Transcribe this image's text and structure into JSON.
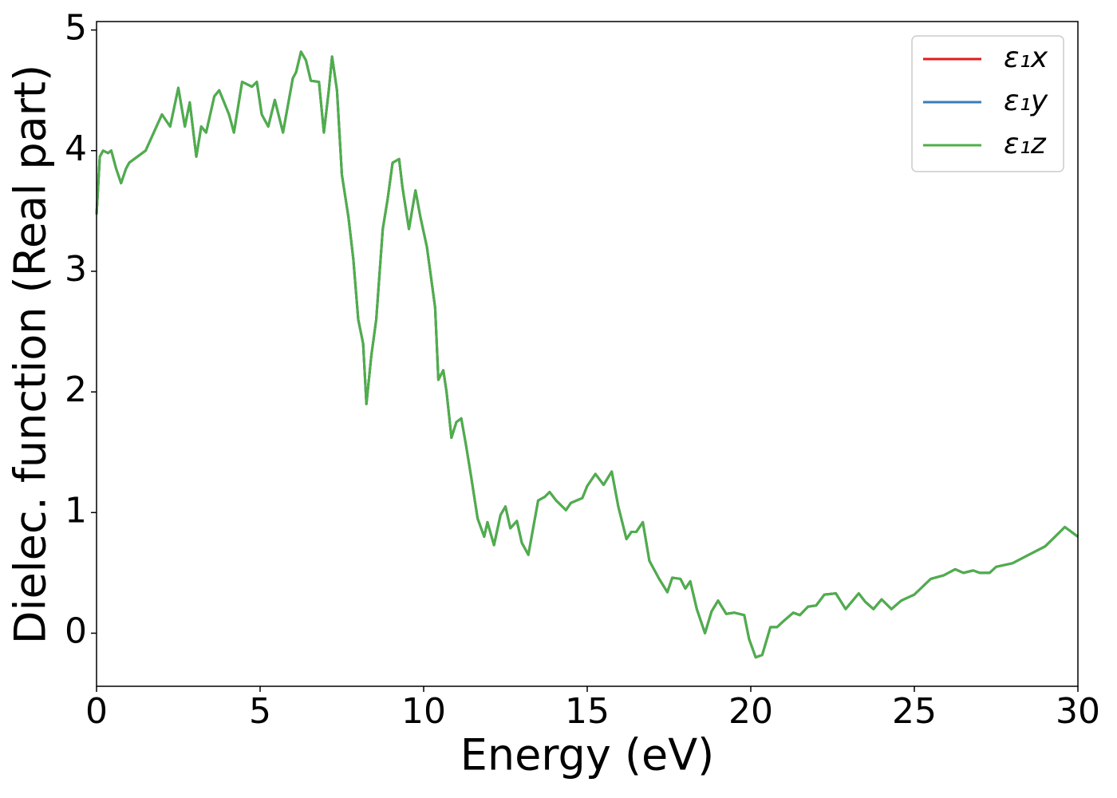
{
  "chart_data": {
    "type": "line",
    "xlabel": "Energy (eV)",
    "ylabel": "Dielec. function (Real part)",
    "xlim": [
      0,
      30
    ],
    "ylim": [
      -0.44,
      5.07
    ],
    "xticks": [
      0,
      5,
      10,
      15,
      20,
      25,
      30
    ],
    "yticks": [
      0,
      1,
      2,
      3,
      4,
      5
    ],
    "grid": false,
    "legend": "upper right",
    "x": [
      0,
      0.1,
      0.2,
      0.35,
      0.45,
      0.6,
      0.75,
      0.9,
      1.0,
      1.5,
      2.0,
      2.25,
      2.5,
      2.7,
      2.85,
      3.05,
      3.2,
      3.35,
      3.6,
      3.75,
      4.05,
      4.2,
      4.45,
      4.75,
      4.9,
      5.05,
      5.25,
      5.45,
      5.7,
      6.0,
      6.1,
      6.25,
      6.4,
      6.55,
      6.8,
      6.95,
      7.1,
      7.2,
      7.35,
      7.5,
      7.7,
      7.85,
      8.0,
      8.15,
      8.25,
      8.4,
      8.55,
      8.75,
      8.9,
      9.05,
      9.25,
      9.35,
      9.55,
      9.75,
      9.9,
      10.1,
      10.25,
      10.35,
      10.45,
      10.6,
      10.7,
      10.85,
      11.0,
      11.15,
      11.3,
      11.45,
      11.65,
      11.85,
      11.95,
      12.15,
      12.35,
      12.5,
      12.65,
      12.85,
      13.0,
      13.2,
      13.3,
      13.5,
      13.7,
      13.85,
      14.05,
      14.35,
      14.5,
      14.85,
      15.0,
      15.25,
      15.5,
      15.75,
      15.95,
      16.2,
      16.35,
      16.5,
      16.7,
      16.9,
      17.2,
      17.45,
      17.6,
      17.85,
      18.0,
      18.15,
      18.35,
      18.6,
      18.8,
      19.0,
      19.25,
      19.5,
      19.8,
      19.95,
      20.15,
      20.35,
      20.6,
      20.8,
      21.0,
      21.3,
      21.5,
      21.75,
      22.0,
      22.25,
      22.6,
      22.9,
      23.3,
      23.5,
      23.75,
      24.0,
      24.3,
      24.6,
      25.0,
      25.5,
      25.9,
      26.25,
      26.5,
      26.8,
      27.0,
      27.3,
      27.5,
      28.0,
      28.5,
      29.0,
      29.3,
      29.6,
      29.9,
      30.0
    ],
    "series": [
      {
        "name": "ε₁x",
        "color": "#e41a1c",
        "values": [
          3.47,
          3.95,
          4.0,
          3.98,
          4.0,
          3.85,
          3.73,
          3.85,
          3.9,
          4.0,
          4.3,
          4.2,
          4.52,
          4.2,
          4.4,
          3.95,
          4.2,
          4.15,
          4.45,
          4.5,
          4.3,
          4.15,
          4.57,
          4.53,
          4.57,
          4.3,
          4.2,
          4.42,
          4.15,
          4.6,
          4.65,
          4.82,
          4.75,
          4.58,
          4.57,
          4.15,
          4.5,
          4.78,
          4.5,
          3.8,
          3.45,
          3.1,
          2.6,
          2.4,
          1.9,
          2.3,
          2.6,
          3.35,
          3.6,
          3.9,
          3.93,
          3.7,
          3.35,
          3.67,
          3.45,
          3.2,
          2.9,
          2.7,
          2.1,
          2.18,
          2.0,
          1.62,
          1.75,
          1.78,
          1.55,
          1.3,
          0.95,
          0.8,
          0.92,
          0.73,
          0.98,
          1.05,
          0.87,
          0.93,
          0.75,
          0.65,
          0.8,
          1.1,
          1.13,
          1.17,
          1.1,
          1.02,
          1.08,
          1.12,
          1.22,
          1.32,
          1.23,
          1.34,
          1.05,
          0.78,
          0.84,
          0.84,
          0.92,
          0.6,
          0.45,
          0.34,
          0.46,
          0.45,
          0.37,
          0.43,
          0.2,
          0.0,
          0.18,
          0.27,
          0.16,
          0.17,
          0.15,
          -0.05,
          -0.2,
          -0.18,
          0.05,
          0.05,
          0.1,
          0.17,
          0.15,
          0.22,
          0.23,
          0.32,
          0.33,
          0.2,
          0.33,
          0.26,
          0.2,
          0.28,
          0.2,
          0.27,
          0.32,
          0.45,
          0.48,
          0.53,
          0.5,
          0.52,
          0.5,
          0.5,
          0.55,
          0.58,
          0.65,
          0.72,
          0.8,
          0.88,
          0.82,
          0.8
        ]
      },
      {
        "name": "ε₁y",
        "color": "#377eb8",
        "values": [
          3.47,
          3.95,
          4.0,
          3.98,
          4.0,
          3.85,
          3.73,
          3.85,
          3.9,
          4.0,
          4.3,
          4.2,
          4.52,
          4.2,
          4.4,
          3.95,
          4.2,
          4.15,
          4.45,
          4.5,
          4.3,
          4.15,
          4.57,
          4.53,
          4.57,
          4.3,
          4.2,
          4.42,
          4.15,
          4.6,
          4.65,
          4.82,
          4.75,
          4.58,
          4.57,
          4.15,
          4.5,
          4.78,
          4.5,
          3.8,
          3.45,
          3.1,
          2.6,
          2.4,
          1.9,
          2.3,
          2.6,
          3.35,
          3.6,
          3.9,
          3.93,
          3.7,
          3.35,
          3.67,
          3.45,
          3.2,
          2.9,
          2.7,
          2.1,
          2.18,
          2.0,
          1.62,
          1.75,
          1.78,
          1.55,
          1.3,
          0.95,
          0.8,
          0.92,
          0.73,
          0.98,
          1.05,
          0.87,
          0.93,
          0.75,
          0.65,
          0.8,
          1.1,
          1.13,
          1.17,
          1.1,
          1.02,
          1.08,
          1.12,
          1.22,
          1.32,
          1.23,
          1.34,
          1.05,
          0.78,
          0.84,
          0.84,
          0.92,
          0.6,
          0.45,
          0.34,
          0.46,
          0.45,
          0.37,
          0.43,
          0.2,
          0.0,
          0.18,
          0.27,
          0.16,
          0.17,
          0.15,
          -0.05,
          -0.2,
          -0.18,
          0.05,
          0.05,
          0.1,
          0.17,
          0.15,
          0.22,
          0.23,
          0.32,
          0.33,
          0.2,
          0.33,
          0.26,
          0.2,
          0.28,
          0.2,
          0.27,
          0.32,
          0.45,
          0.48,
          0.53,
          0.5,
          0.52,
          0.5,
          0.5,
          0.55,
          0.58,
          0.65,
          0.72,
          0.8,
          0.88,
          0.82,
          0.8
        ]
      },
      {
        "name": "ε₁z",
        "color": "#4daf4a",
        "values": [
          3.47,
          3.95,
          4.0,
          3.98,
          4.0,
          3.85,
          3.73,
          3.85,
          3.9,
          4.0,
          4.3,
          4.2,
          4.52,
          4.2,
          4.4,
          3.95,
          4.2,
          4.15,
          4.45,
          4.5,
          4.3,
          4.15,
          4.57,
          4.53,
          4.57,
          4.3,
          4.2,
          4.42,
          4.15,
          4.6,
          4.65,
          4.82,
          4.75,
          4.58,
          4.57,
          4.15,
          4.5,
          4.78,
          4.5,
          3.8,
          3.45,
          3.1,
          2.6,
          2.4,
          1.9,
          2.3,
          2.6,
          3.35,
          3.6,
          3.9,
          3.93,
          3.7,
          3.35,
          3.67,
          3.45,
          3.2,
          2.9,
          2.7,
          2.1,
          2.18,
          2.0,
          1.62,
          1.75,
          1.78,
          1.55,
          1.3,
          0.95,
          0.8,
          0.92,
          0.73,
          0.98,
          1.05,
          0.87,
          0.93,
          0.75,
          0.65,
          0.8,
          1.1,
          1.13,
          1.17,
          1.1,
          1.02,
          1.08,
          1.12,
          1.22,
          1.32,
          1.23,
          1.34,
          1.05,
          0.78,
          0.84,
          0.84,
          0.92,
          0.6,
          0.45,
          0.34,
          0.46,
          0.45,
          0.37,
          0.43,
          0.2,
          0.0,
          0.18,
          0.27,
          0.16,
          0.17,
          0.15,
          -0.05,
          -0.2,
          -0.18,
          0.05,
          0.05,
          0.1,
          0.17,
          0.15,
          0.22,
          0.23,
          0.32,
          0.33,
          0.2,
          0.33,
          0.26,
          0.2,
          0.28,
          0.2,
          0.27,
          0.32,
          0.45,
          0.48,
          0.53,
          0.5,
          0.52,
          0.5,
          0.5,
          0.55,
          0.58,
          0.65,
          0.72,
          0.8,
          0.88,
          0.82,
          0.8
        ]
      }
    ]
  }
}
